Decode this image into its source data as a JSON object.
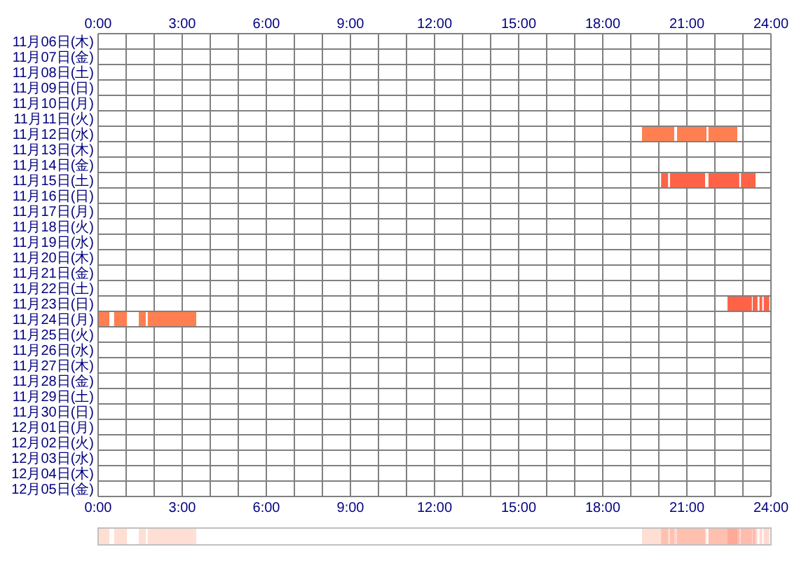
{
  "chart_data": {
    "type": "bar",
    "orientation": "horizontal",
    "grid": true,
    "categories": [
      "11月06日(木)",
      "11月07日(金)",
      "11月08日(土)",
      "11月09日(日)",
      "11月10日(月)",
      "11月11日(火)",
      "11月12日(水)",
      "11月13日(木)",
      "11月14日(金)",
      "11月15日(土)",
      "11月16日(日)",
      "11月17日(月)",
      "11月18日(火)",
      "11月19日(水)",
      "11月20日(木)",
      "11月21日(金)",
      "11月22日(土)",
      "11月23日(日)",
      "11月24日(月)",
      "11月25日(火)",
      "11月26日(水)",
      "11月27日(木)",
      "11月28日(金)",
      "11月29日(土)",
      "11月30日(日)",
      "12月01日(月)",
      "12月02日(火)",
      "12月03日(水)",
      "12月04日(木)",
      "12月05日(金)"
    ],
    "xlim": [
      0,
      24
    ],
    "xticks": [
      {
        "value": 0,
        "label": "0:00"
      },
      {
        "value": 1,
        "label": null
      },
      {
        "value": 2,
        "label": null
      },
      {
        "value": 3,
        "label": "3:00"
      },
      {
        "value": 4,
        "label": null
      },
      {
        "value": 5,
        "label": null
      },
      {
        "value": 6,
        "label": "6:00"
      },
      {
        "value": 7,
        "label": null
      },
      {
        "value": 8,
        "label": null
      },
      {
        "value": 9,
        "label": "9:00"
      },
      {
        "value": 10,
        "label": null
      },
      {
        "value": 11,
        "label": null
      },
      {
        "value": 12,
        "label": "12:00"
      },
      {
        "value": 13,
        "label": null
      },
      {
        "value": 14,
        "label": null
      },
      {
        "value": 15,
        "label": "15:00"
      },
      {
        "value": 16,
        "label": null
      },
      {
        "value": 17,
        "label": null
      },
      {
        "value": 18,
        "label": "18:00"
      },
      {
        "value": 19,
        "label": null
      },
      {
        "value": 20,
        "label": null
      },
      {
        "value": 21,
        "label": "21:00"
      },
      {
        "value": 22,
        "label": null
      },
      {
        "value": 23,
        "label": null
      },
      {
        "value": 24,
        "label": "24:00"
      }
    ],
    "x2lim": [
      0,
      24
    ],
    "x2ticks": [
      {
        "value": 0,
        "label": "0:00"
      },
      {
        "value": 1,
        "label": null
      },
      {
        "value": 2,
        "label": null
      },
      {
        "value": 3,
        "label": "3:00"
      },
      {
        "value": 4,
        "label": null
      },
      {
        "value": 5,
        "label": null
      },
      {
        "value": 6,
        "label": "6:00"
      },
      {
        "value": 7,
        "label": null
      },
      {
        "value": 8,
        "label": null
      },
      {
        "value": 9,
        "label": "9:00"
      },
      {
        "value": 10,
        "label": null
      },
      {
        "value": 11,
        "label": null
      },
      {
        "value": 12,
        "label": "12:00"
      },
      {
        "value": 13,
        "label": null
      },
      {
        "value": 14,
        "label": null
      },
      {
        "value": 15,
        "label": "15:00"
      },
      {
        "value": 16,
        "label": null
      },
      {
        "value": 17,
        "label": null
      },
      {
        "value": 18,
        "label": "18:00"
      },
      {
        "value": 19,
        "label": null
      },
      {
        "value": 20,
        "label": null
      },
      {
        "value": 21,
        "label": "21:00"
      },
      {
        "value": 22,
        "label": null
      },
      {
        "value": 23,
        "label": null
      },
      {
        "value": 24,
        "label": "24:00"
      }
    ],
    "series": [
      {
        "base": [
          null,
          null,
          null,
          null,
          null,
          null,
          19.4,
          null,
          null,
          20.08,
          null,
          null,
          null,
          null,
          null,
          null,
          null,
          22.45,
          0,
          null,
          null,
          null,
          null,
          null,
          null,
          null,
          null,
          null,
          null,
          null
        ],
        "values": [
          null,
          null,
          null,
          null,
          null,
          null,
          1.15,
          null,
          null,
          0.25,
          null,
          null,
          null,
          null,
          null,
          null,
          null,
          0.87,
          0.4,
          null,
          null,
          null,
          null,
          null,
          null,
          null,
          null,
          null,
          null,
          null
        ],
        "colors": [
          null,
          null,
          null,
          null,
          null,
          null,
          "#ff7f50",
          null,
          null,
          "#ff6347",
          null,
          null,
          null,
          null,
          null,
          null,
          null,
          "#ff6347",
          "#ff7f50",
          null,
          null,
          null,
          null,
          null,
          null,
          null,
          null,
          null,
          null,
          null
        ]
      },
      {
        "base": [
          null,
          null,
          null,
          null,
          null,
          null,
          20.65,
          null,
          null,
          20.4,
          null,
          null,
          null,
          null,
          null,
          null,
          null,
          23.35,
          0.57,
          null,
          null,
          null,
          null,
          null,
          null,
          null,
          null,
          null,
          null,
          null
        ],
        "values": [
          null,
          null,
          null,
          null,
          null,
          null,
          1.05,
          null,
          null,
          1.25,
          null,
          null,
          null,
          null,
          null,
          null,
          null,
          0.17,
          0.46,
          null,
          null,
          null,
          null,
          null,
          null,
          null,
          null,
          null,
          null,
          null
        ],
        "colors": [
          null,
          null,
          null,
          null,
          null,
          null,
          "#ff7f50",
          null,
          null,
          "#ff6347",
          null,
          null,
          null,
          null,
          null,
          null,
          null,
          "#ff6347",
          "#ff7f50",
          null,
          null,
          null,
          null,
          null,
          null,
          null,
          null,
          null,
          null,
          null
        ]
      },
      {
        "base": [
          null,
          null,
          null,
          null,
          null,
          null,
          21.77,
          null,
          null,
          21.77,
          null,
          null,
          null,
          null,
          null,
          null,
          null,
          23.59,
          1.45,
          null,
          null,
          null,
          null,
          null,
          null,
          null,
          null,
          null,
          null,
          null
        ],
        "values": [
          null,
          null,
          null,
          null,
          null,
          null,
          1.03,
          null,
          null,
          1.1,
          null,
          null,
          null,
          null,
          null,
          null,
          null,
          0.1,
          0.25,
          null,
          null,
          null,
          null,
          null,
          null,
          null,
          null,
          null,
          null,
          null
        ],
        "colors": [
          null,
          null,
          null,
          null,
          null,
          null,
          "#ff7f50",
          null,
          null,
          "#ff6347",
          null,
          null,
          null,
          null,
          null,
          null,
          null,
          "#ff6347",
          "#ff7f50",
          null,
          null,
          null,
          null,
          null,
          null,
          null,
          null,
          null,
          null,
          null
        ]
      },
      {
        "base": [
          null,
          null,
          null,
          null,
          null,
          null,
          null,
          null,
          null,
          22.93,
          null,
          null,
          null,
          null,
          null,
          null,
          null,
          23.74,
          1.77,
          null,
          null,
          null,
          null,
          null,
          null,
          null,
          null,
          null,
          null,
          null
        ],
        "values": [
          null,
          null,
          null,
          null,
          null,
          null,
          null,
          null,
          null,
          0.52,
          null,
          null,
          null,
          null,
          null,
          null,
          null,
          0.2,
          1.73,
          null,
          null,
          null,
          null,
          null,
          null,
          null,
          null,
          null,
          null,
          null
        ],
        "colors": [
          null,
          null,
          null,
          null,
          null,
          null,
          null,
          null,
          null,
          "#ff6347",
          null,
          null,
          null,
          null,
          null,
          null,
          null,
          "#ff6347",
          "#ff7f50",
          null,
          null,
          null,
          null,
          null,
          null,
          null,
          null,
          null,
          null,
          null
        ]
      }
    ]
  }
}
